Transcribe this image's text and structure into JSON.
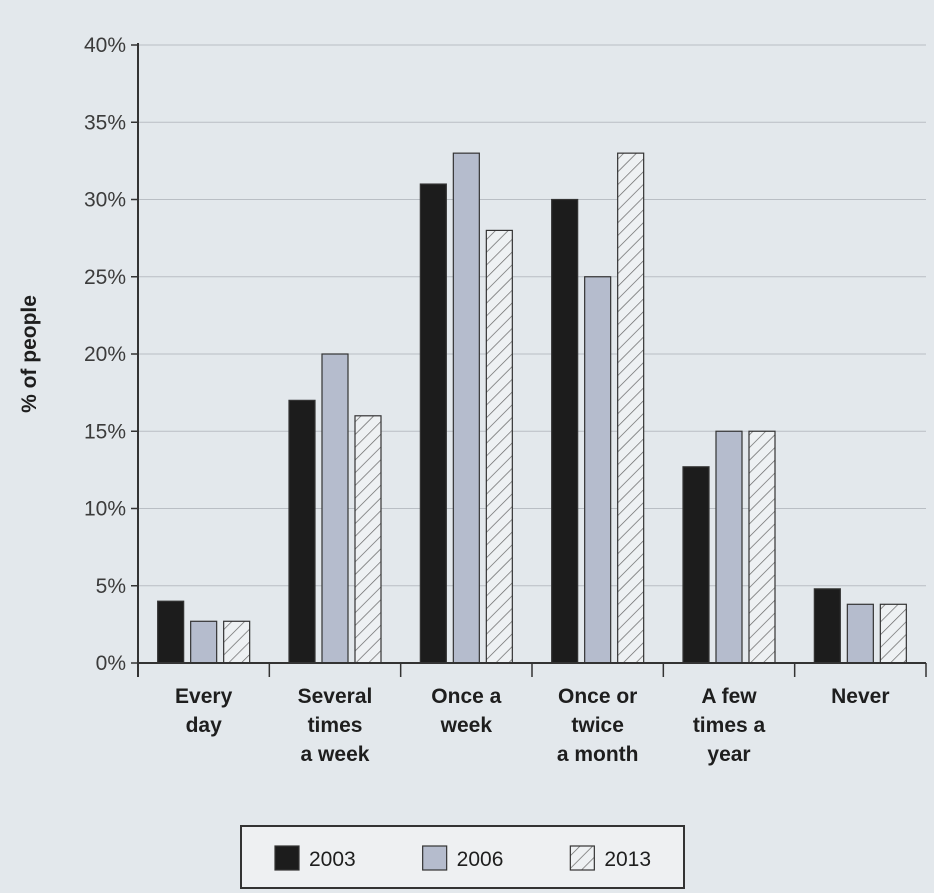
{
  "chart_data": {
    "type": "bar",
    "title": "",
    "xlabel": "",
    "ylabel": "% of people",
    "ylim": [
      0,
      40
    ],
    "y_ticks": [
      "0%",
      "5%",
      "10%",
      "15%",
      "20%",
      "25%",
      "30%",
      "35%",
      "40%"
    ],
    "categories": [
      [
        "Every",
        "day"
      ],
      [
        "Several",
        "times",
        "a week"
      ],
      [
        "Once a",
        "week"
      ],
      [
        "Once or",
        "twice",
        "a month"
      ],
      [
        "A few",
        "times a",
        "year"
      ],
      [
        "Never"
      ]
    ],
    "series": [
      {
        "name": "2003",
        "values": [
          4,
          17,
          31,
          30,
          12.7,
          4.8
        ],
        "color": "#1c1c1c",
        "pattern": "solid"
      },
      {
        "name": "2006",
        "values": [
          2.7,
          20,
          33,
          25,
          15,
          3.8
        ],
        "color": "#b5bccd",
        "pattern": "solid"
      },
      {
        "name": "2013",
        "values": [
          2.7,
          16,
          28,
          33,
          15,
          3.8
        ],
        "color": "#eef1f3",
        "pattern": "hatch"
      }
    ],
    "grid": true,
    "legend_position": "bottom"
  }
}
